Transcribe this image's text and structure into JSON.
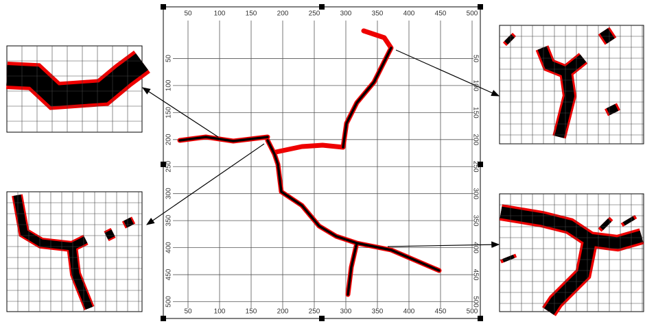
{
  "main_plot": {
    "xticks": [
      50,
      100,
      150,
      200,
      250,
      300,
      350,
      400,
      450,
      500
    ],
    "yticks": [
      50,
      100,
      150,
      200,
      250,
      300,
      350,
      400,
      450,
      500
    ]
  }
}
